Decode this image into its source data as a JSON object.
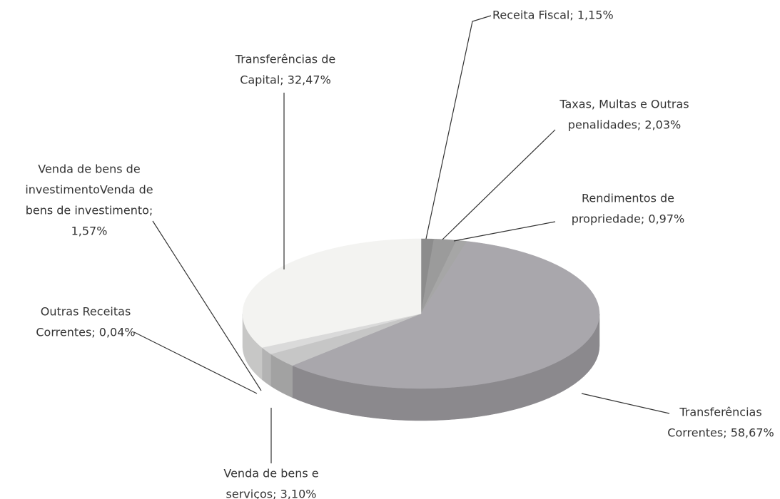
{
  "chart_data": {
    "type": "pie3d",
    "labels": [
      [
        "Receita Fiscal; 1,15%"
      ],
      [
        "Taxas, Multas e Outras",
        "penalidades; 2,03%"
      ],
      [
        "Rendimentos de",
        "propriedade; 0,97%"
      ],
      [
        "Transferências",
        "Correntes; 58,67%"
      ],
      [
        "Venda de bens e",
        "serviços; 3,10%"
      ],
      [
        "Outras Receitas",
        "Correntes; 0,04%"
      ],
      [
        "Venda de bens de",
        "investimentoVenda de",
        "bens de investimento;",
        "1,57%"
      ],
      [
        "Transferências de",
        "Capital; 32,47%"
      ]
    ],
    "values": [
      1.15,
      2.03,
      0.97,
      58.67,
      3.1,
      0.04,
      1.57,
      32.47
    ],
    "colors": [
      "#8c8c8c",
      "#9b9b9b",
      "#a6a6a6",
      "#a9a7ac",
      "#c6c6c6",
      "#cfcfcf",
      "#dadada",
      "#f3f3f1"
    ]
  }
}
